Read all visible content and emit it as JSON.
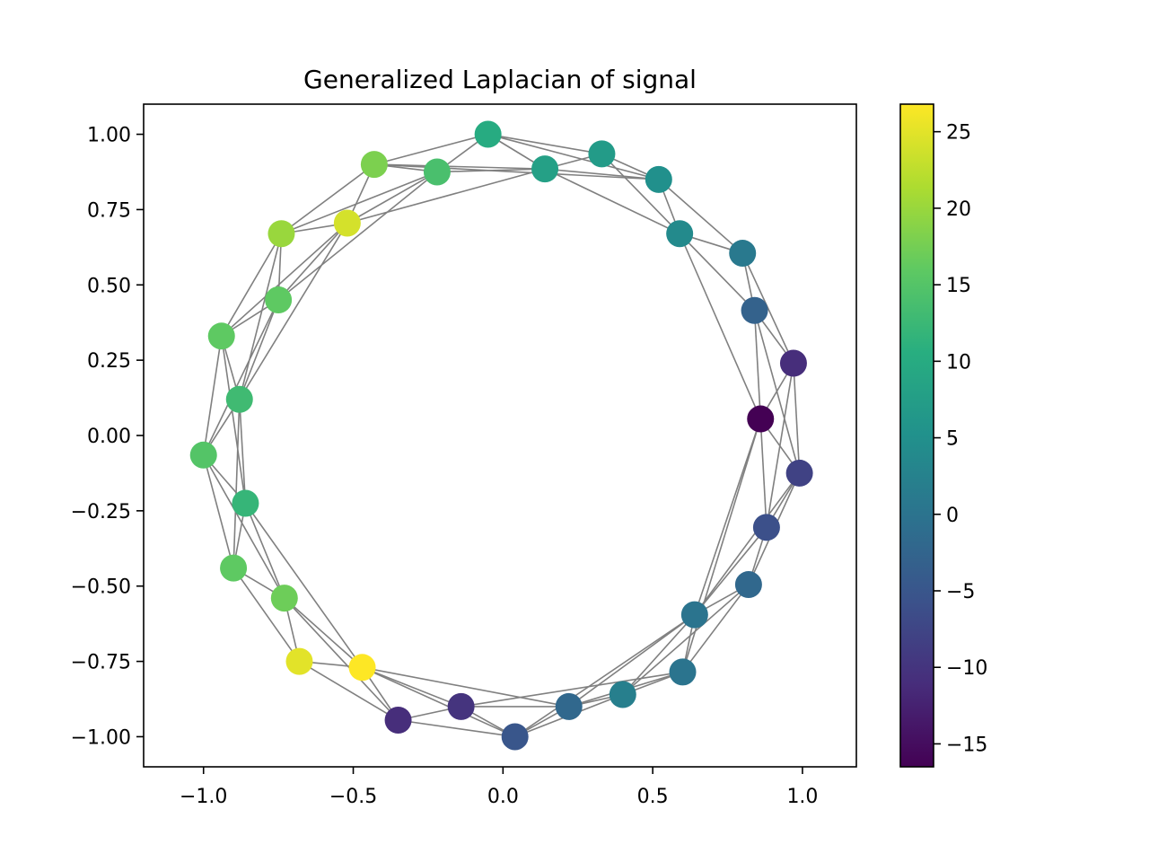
{
  "chart_data": {
    "type": "scatter",
    "subtype": "graph-network",
    "title": "Generalized Laplacian of signal",
    "xlabel": "",
    "ylabel": "",
    "xlim": [
      -1.2,
      1.18
    ],
    "ylim": [
      -1.1,
      1.1
    ],
    "x_ticks": [
      -1.0,
      -0.5,
      0.0,
      0.5,
      1.0
    ],
    "x_tick_labels": [
      "−1.0",
      "−0.5",
      "0.0",
      "0.5",
      "1.0"
    ],
    "y_ticks": [
      1.0,
      0.75,
      0.5,
      0.25,
      0.0,
      -0.25,
      -0.5,
      -0.75,
      -1.0
    ],
    "y_tick_labels": [
      "1.00",
      "0.75",
      "0.50",
      "0.25",
      "0.00",
      "−0.25",
      "−0.50",
      "−0.75",
      "−1.00"
    ],
    "grid": false,
    "edge_color": "#808080",
    "colormap": "viridis",
    "colorbar": {
      "vmin": -16.5,
      "vmax": 26.8,
      "ticks": [
        25,
        20,
        15,
        10,
        5,
        0,
        -5,
        -10,
        -15
      ],
      "tick_labels": [
        "25",
        "20",
        "15",
        "10",
        "5",
        "0",
        "−5",
        "−10",
        "−15"
      ]
    },
    "nodes": [
      {
        "x": -0.05,
        "y": 1.0,
        "value": 10
      },
      {
        "x": 0.14,
        "y": 0.885,
        "value": 8
      },
      {
        "x": 0.33,
        "y": 0.935,
        "value": 7
      },
      {
        "x": 0.52,
        "y": 0.85,
        "value": 5
      },
      {
        "x": 0.59,
        "y": 0.67,
        "value": 4
      },
      {
        "x": 0.8,
        "y": 0.605,
        "value": 1
      },
      {
        "x": 0.84,
        "y": 0.415,
        "value": -3
      },
      {
        "x": 0.97,
        "y": 0.24,
        "value": -11
      },
      {
        "x": 0.86,
        "y": 0.055,
        "value": -16.5
      },
      {
        "x": 0.99,
        "y": -0.125,
        "value": -8
      },
      {
        "x": 0.88,
        "y": -0.305,
        "value": -6
      },
      {
        "x": 0.82,
        "y": -0.495,
        "value": -2
      },
      {
        "x": 0.64,
        "y": -0.595,
        "value": 0
      },
      {
        "x": 0.6,
        "y": -0.785,
        "value": 0
      },
      {
        "x": 0.4,
        "y": -0.86,
        "value": 2
      },
      {
        "x": 0.22,
        "y": -0.9,
        "value": -2
      },
      {
        "x": 0.04,
        "y": -1.0,
        "value": -5
      },
      {
        "x": -0.14,
        "y": -0.9,
        "value": -10
      },
      {
        "x": -0.35,
        "y": -0.945,
        "value": -11
      },
      {
        "x": -0.47,
        "y": -0.77,
        "value": 26.8
      },
      {
        "x": -0.68,
        "y": -0.75,
        "value": 25
      },
      {
        "x": -0.73,
        "y": -0.54,
        "value": 17
      },
      {
        "x": -0.9,
        "y": -0.44,
        "value": 16
      },
      {
        "x": -0.86,
        "y": -0.225,
        "value": 12
      },
      {
        "x": -1.0,
        "y": -0.065,
        "value": 15
      },
      {
        "x": -0.88,
        "y": 0.12,
        "value": 13
      },
      {
        "x": -0.94,
        "y": 0.33,
        "value": 16
      },
      {
        "x": -0.75,
        "y": 0.45,
        "value": 16
      },
      {
        "x": -0.74,
        "y": 0.67,
        "value": 20
      },
      {
        "x": -0.52,
        "y": 0.705,
        "value": 24
      },
      {
        "x": -0.43,
        "y": 0.9,
        "value": 18
      },
      {
        "x": -0.22,
        "y": 0.875,
        "value": 14
      }
    ],
    "edges": [
      [
        0,
        1
      ],
      [
        0,
        2
      ],
      [
        0,
        3
      ],
      [
        1,
        2
      ],
      [
        1,
        3
      ],
      [
        2,
        3
      ],
      [
        1,
        4
      ],
      [
        3,
        4
      ],
      [
        2,
        4
      ],
      [
        3,
        5
      ],
      [
        4,
        5
      ],
      [
        4,
        6
      ],
      [
        5,
        6
      ],
      [
        5,
        7
      ],
      [
        6,
        7
      ],
      [
        6,
        8
      ],
      [
        4,
        8
      ],
      [
        7,
        8
      ],
      [
        7,
        9
      ],
      [
        8,
        9
      ],
      [
        7,
        10
      ],
      [
        9,
        10
      ],
      [
        8,
        10
      ],
      [
        6,
        9
      ],
      [
        9,
        11
      ],
      [
        10,
        11
      ],
      [
        9,
        12
      ],
      [
        10,
        12
      ],
      [
        11,
        12
      ],
      [
        8,
        12
      ],
      [
        8,
        13
      ],
      [
        11,
        13
      ],
      [
        12,
        13
      ],
      [
        12,
        14
      ],
      [
        13,
        14
      ],
      [
        12,
        15
      ],
      [
        11,
        14
      ],
      [
        13,
        15
      ],
      [
        14,
        15
      ],
      [
        14,
        16
      ],
      [
        15,
        16
      ],
      [
        12,
        16
      ],
      [
        15,
        17
      ],
      [
        16,
        17
      ],
      [
        13,
        17
      ],
      [
        16,
        18
      ],
      [
        17,
        18
      ],
      [
        17,
        19
      ],
      [
        18,
        19
      ],
      [
        18,
        20
      ],
      [
        19,
        20
      ],
      [
        15,
        19
      ],
      [
        16,
        19
      ],
      [
        19,
        21
      ],
      [
        20,
        21
      ],
      [
        20,
        22
      ],
      [
        21,
        22
      ],
      [
        21,
        23
      ],
      [
        22,
        23
      ],
      [
        19,
        23
      ],
      [
        18,
        21
      ],
      [
        22,
        24
      ],
      [
        23,
        24
      ],
      [
        23,
        25
      ],
      [
        24,
        25
      ],
      [
        24,
        26
      ],
      [
        25,
        26
      ],
      [
        25,
        27
      ],
      [
        26,
        27
      ],
      [
        26,
        28
      ],
      [
        27,
        28
      ],
      [
        24,
        27
      ],
      [
        27,
        29
      ],
      [
        28,
        29
      ],
      [
        25,
        28
      ],
      [
        28,
        30
      ],
      [
        29,
        30
      ],
      [
        29,
        31
      ],
      [
        30,
        31
      ],
      [
        30,
        1
      ],
      [
        31,
        1
      ],
      [
        31,
        0
      ],
      [
        30,
        0
      ],
      [
        29,
        1
      ],
      [
        28,
        31
      ],
      [
        26,
        29
      ],
      [
        25,
        29
      ],
      [
        1,
        0
      ],
      [
        27,
        31
      ],
      [
        22,
        25
      ],
      [
        21,
        24
      ],
      [
        23,
        26
      ],
      [
        30,
        3
      ]
    ]
  }
}
